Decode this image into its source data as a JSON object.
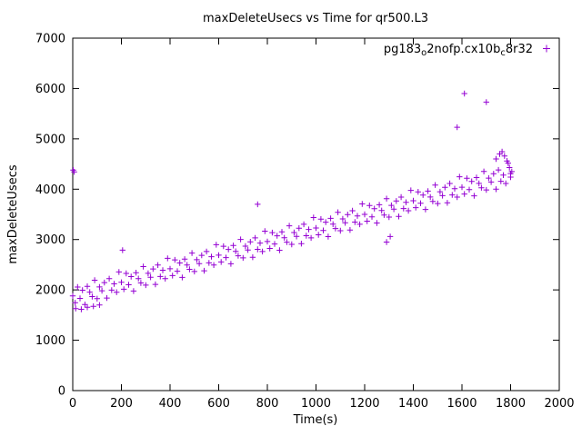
{
  "window": {
    "background": "#ffffff"
  },
  "colors": {
    "points": "#9400d3",
    "axis": "#000000"
  },
  "legend": {
    "p1": "pg183",
    "s1": "o",
    "p2": "2nofp.cx10b",
    "s2": "c",
    "p3": "8r32"
  },
  "chart_data": {
    "type": "scatter",
    "marker": "plus",
    "title": "maxDeleteUsecs vs Time for qr500.L3",
    "xlabel": "Time(s)",
    "ylabel": "maxDeleteUsecs",
    "xlim": [
      0,
      2000
    ],
    "ylim": [
      0,
      7000
    ],
    "xticks": [
      0,
      200,
      400,
      600,
      800,
      1000,
      1200,
      1400,
      1600,
      1800,
      2000
    ],
    "yticks": [
      0,
      1000,
      2000,
      3000,
      4000,
      5000,
      6000,
      7000
    ],
    "grid": false,
    "legend_position": "top-right",
    "series": [
      {
        "name": "pg183_o2nofp.cx10b_c8r32",
        "points": [
          [
            0,
            1880
          ],
          [
            10,
            1744
          ],
          [
            20,
            2057
          ],
          [
            30,
            1831
          ],
          [
            40,
            1994
          ],
          [
            50,
            1708
          ],
          [
            60,
            2071
          ],
          [
            70,
            1955
          ],
          [
            80,
            1868
          ],
          [
            90,
            2192
          ],
          [
            100,
            1825
          ],
          [
            110,
            2059
          ],
          [
            120,
            1982
          ],
          [
            130,
            2146
          ],
          [
            140,
            1839
          ],
          [
            150,
            2223
          ],
          [
            160,
            1996
          ],
          [
            170,
            2120
          ],
          [
            180,
            1953
          ],
          [
            190,
            2357
          ],
          [
            200,
            2150
          ],
          [
            210,
            2014
          ],
          [
            220,
            2327
          ],
          [
            230,
            2101
          ],
          [
            240,
            2264
          ],
          [
            250,
            1978
          ],
          [
            260,
            2341
          ],
          [
            270,
            2225
          ],
          [
            280,
            2138
          ],
          [
            290,
            2462
          ],
          [
            300,
            2095
          ],
          [
            310,
            2329
          ],
          [
            320,
            2252
          ],
          [
            330,
            2416
          ],
          [
            340,
            2109
          ],
          [
            350,
            2493
          ],
          [
            360,
            2266
          ],
          [
            370,
            2390
          ],
          [
            380,
            2223
          ],
          [
            390,
            2627
          ],
          [
            400,
            2420
          ],
          [
            410,
            2284
          ],
          [
            420,
            2597
          ],
          [
            430,
            2371
          ],
          [
            440,
            2534
          ],
          [
            450,
            2248
          ],
          [
            460,
            2611
          ],
          [
            470,
            2495
          ],
          [
            480,
            2408
          ],
          [
            490,
            2732
          ],
          [
            500,
            2365
          ],
          [
            510,
            2599
          ],
          [
            520,
            2522
          ],
          [
            530,
            2686
          ],
          [
            540,
            2379
          ],
          [
            550,
            2763
          ],
          [
            560,
            2536
          ],
          [
            570,
            2660
          ],
          [
            580,
            2493
          ],
          [
            590,
            2897
          ],
          [
            600,
            2690
          ],
          [
            610,
            2554
          ],
          [
            620,
            2867
          ],
          [
            630,
            2641
          ],
          [
            640,
            2804
          ],
          [
            650,
            2518
          ],
          [
            660,
            2881
          ],
          [
            670,
            2765
          ],
          [
            680,
            2678
          ],
          [
            690,
            3002
          ],
          [
            700,
            2635
          ],
          [
            710,
            2869
          ],
          [
            720,
            2792
          ],
          [
            730,
            2956
          ],
          [
            740,
            2649
          ],
          [
            750,
            3033
          ],
          [
            760,
            2806
          ],
          [
            770,
            2930
          ],
          [
            780,
            2763
          ],
          [
            790,
            3167
          ],
          [
            800,
            2960
          ],
          [
            810,
            2824
          ],
          [
            820,
            3137
          ],
          [
            830,
            2911
          ],
          [
            840,
            3074
          ],
          [
            850,
            2788
          ],
          [
            860,
            3151
          ],
          [
            870,
            3035
          ],
          [
            880,
            2948
          ],
          [
            890,
            3272
          ],
          [
            900,
            2905
          ],
          [
            910,
            3139
          ],
          [
            920,
            3062
          ],
          [
            930,
            3226
          ],
          [
            940,
            2919
          ],
          [
            950,
            3303
          ],
          [
            960,
            3076
          ],
          [
            970,
            3200
          ],
          [
            980,
            3033
          ],
          [
            990,
            3437
          ],
          [
            1000,
            3230
          ],
          [
            1010,
            3094
          ],
          [
            1020,
            3407
          ],
          [
            1030,
            3181
          ],
          [
            1040,
            3344
          ],
          [
            1050,
            3058
          ],
          [
            1060,
            3421
          ],
          [
            1070,
            3305
          ],
          [
            1080,
            3218
          ],
          [
            1090,
            3542
          ],
          [
            1100,
            3175
          ],
          [
            1110,
            3409
          ],
          [
            1120,
            3332
          ],
          [
            1130,
            3496
          ],
          [
            1140,
            3189
          ],
          [
            1150,
            3573
          ],
          [
            1160,
            3346
          ],
          [
            1170,
            3470
          ],
          [
            1180,
            3303
          ],
          [
            1190,
            3707
          ],
          [
            1200,
            3500
          ],
          [
            1210,
            3364
          ],
          [
            1220,
            3677
          ],
          [
            1230,
            3451
          ],
          [
            1240,
            3614
          ],
          [
            1250,
            3328
          ],
          [
            1260,
            3691
          ],
          [
            1270,
            3575
          ],
          [
            1280,
            3488
          ],
          [
            1290,
            3812
          ],
          [
            1300,
            3445
          ],
          [
            1310,
            3679
          ],
          [
            1320,
            3602
          ],
          [
            1330,
            3766
          ],
          [
            1340,
            3459
          ],
          [
            1350,
            3843
          ],
          [
            1360,
            3616
          ],
          [
            1370,
            3740
          ],
          [
            1380,
            3573
          ],
          [
            1390,
            3977
          ],
          [
            1400,
            3770
          ],
          [
            1410,
            3634
          ],
          [
            1420,
            3947
          ],
          [
            1430,
            3721
          ],
          [
            1440,
            3884
          ],
          [
            1450,
            3598
          ],
          [
            1460,
            3961
          ],
          [
            1470,
            3845
          ],
          [
            1480,
            3758
          ],
          [
            1490,
            4082
          ],
          [
            1500,
            3715
          ],
          [
            1510,
            3949
          ],
          [
            1520,
            3872
          ],
          [
            1530,
            4036
          ],
          [
            1540,
            3729
          ],
          [
            1550,
            4113
          ],
          [
            1560,
            3886
          ],
          [
            1570,
            4010
          ],
          [
            1580,
            3843
          ],
          [
            1590,
            4247
          ],
          [
            1600,
            4040
          ],
          [
            1610,
            3904
          ],
          [
            1620,
            4217
          ],
          [
            1630,
            3991
          ],
          [
            1640,
            4154
          ],
          [
            1650,
            3868
          ],
          [
            1660,
            4231
          ],
          [
            1670,
            4115
          ],
          [
            1680,
            4028
          ],
          [
            1690,
            4352
          ],
          [
            1700,
            3985
          ],
          [
            1710,
            4219
          ],
          [
            1720,
            4142
          ],
          [
            1730,
            4306
          ],
          [
            1740,
            3999
          ],
          [
            1750,
            4383
          ],
          [
            1760,
            4156
          ],
          [
            1770,
            4280
          ],
          [
            1780,
            4113
          ],
          [
            1790,
            4517
          ],
          [
            1800,
            4310
          ],
          [
            2,
            4380
          ],
          [
            6,
            4345
          ],
          [
            12,
            1630
          ],
          [
            35,
            1615
          ],
          [
            60,
            1655
          ],
          [
            85,
            1675
          ],
          [
            110,
            1700
          ],
          [
            205,
            2790
          ],
          [
            760,
            3700
          ],
          [
            1290,
            2950
          ],
          [
            1305,
            3060
          ],
          [
            1580,
            5230
          ],
          [
            1610,
            5900
          ],
          [
            1700,
            5730
          ],
          [
            1740,
            4600
          ],
          [
            1755,
            4700
          ],
          [
            1765,
            4745
          ],
          [
            1775,
            4660
          ],
          [
            1785,
            4560
          ],
          [
            1795,
            4430
          ],
          [
            1805,
            4350
          ],
          [
            1800,
            4240
          ]
        ]
      }
    ]
  }
}
